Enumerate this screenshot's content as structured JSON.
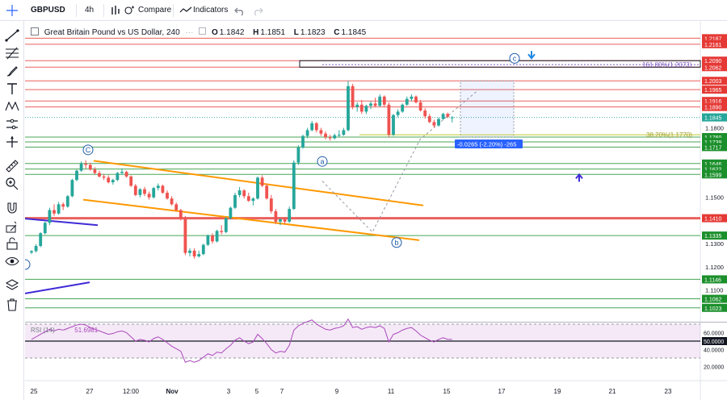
{
  "toolbar": {
    "symbol": "GBPUSD",
    "interval": "4h",
    "compare_label": "Compare",
    "indicators_label": "Indicators"
  },
  "legend": {
    "title": "Great Britain Pound vs US Dollar, 240",
    "open_label": "O",
    "open": "1.1842",
    "high_label": "H",
    "high": "1.1851",
    "low_label": "L",
    "low": "1.1823",
    "close_label": "C",
    "close": "1.1845"
  },
  "rsi": {
    "label": "RSI (14)",
    "value": "51.6981",
    "axis_labels": [
      "60.0000",
      "50.0000",
      "40.0000",
      "20.0000"
    ]
  },
  "price_axis": {
    "levels": [
      {
        "text": "1.2187",
        "color": "#e53935",
        "price": 1.2187
      },
      {
        "text": "1.2161",
        "color": "#e53935",
        "price": 1.2161
      },
      {
        "text": "1.2090",
        "color": "#e53935",
        "price": 1.209
      },
      {
        "text": "1.2062",
        "color": "#e53935",
        "price": 1.2062
      },
      {
        "text": "1.2003",
        "color": "#e53935",
        "price": 1.2003
      },
      {
        "text": "1.1965",
        "color": "#e53935",
        "price": 1.1965
      },
      {
        "text": "1.1916",
        "color": "#e53935",
        "price": 1.1916
      },
      {
        "text": "1.1890",
        "color": "#e53935",
        "price": 1.189
      },
      {
        "text": "1.1845",
        "color": "#26a69a",
        "price": 1.1845
      },
      {
        "text": "1.1760",
        "color": "#1b8f2b",
        "price": 1.176
      },
      {
        "text": "1.1739",
        "color": "#1b8f2b",
        "price": 1.1739
      },
      {
        "text": "1.1717",
        "color": "#1b8f2b",
        "price": 1.1717
      },
      {
        "text": "1.1646",
        "color": "#1b8f2b",
        "price": 1.1646
      },
      {
        "text": "1.1622",
        "color": "#1b8f2b",
        "price": 1.1622
      },
      {
        "text": "1.1599",
        "color": "#1b8f2b",
        "price": 1.1599
      },
      {
        "text": "1.1410",
        "color": "#e53935",
        "price": 1.141
      },
      {
        "text": "1.1335",
        "color": "#1b8f2b",
        "price": 1.1335
      },
      {
        "text": "1.1146",
        "color": "#1b8f2b",
        "price": 1.1146
      },
      {
        "text": "1.1062",
        "color": "#1b8f2b",
        "price": 1.1062
      },
      {
        "text": "1.1023",
        "color": "#1b8f2b",
        "price": 1.1023
      }
    ],
    "scale_labels": [
      {
        "text": "1.1800",
        "price": 1.18
      },
      {
        "text": "1.1500",
        "price": 1.15
      },
      {
        "text": "1.1300",
        "price": 1.13
      },
      {
        "text": "1.1200",
        "price": 1.12
      },
      {
        "text": "1.1100",
        "price": 1.11
      }
    ]
  },
  "time_axis": [
    "25",
    "27",
    "12:00",
    "Nov",
    "3",
    "5",
    "7",
    "9",
    "11",
    "15",
    "17",
    "19",
    "21",
    "23",
    "25"
  ],
  "annotations": {
    "fib_high": "161.80%(1.2073)",
    "fib_low": "38.20%(1.1770)",
    "measure": "-0.0265 (-2.20%) -265",
    "wave_a": "a",
    "wave_b": "b",
    "wave_c": "c",
    "wave_C": "C"
  },
  "colors": {
    "up": "#26a69a",
    "down": "#ef5350",
    "resistance": "#e53935",
    "support": "#1b8f2b",
    "channel": "#ff9800",
    "trend": "#3f2bd6",
    "rsi": "#ab47bc",
    "arrow": "#1e88e5"
  },
  "chart_data": {
    "type": "candlestick",
    "symbol": "GBPUSD",
    "interval": "240",
    "candles": [
      [
        1.1262,
        1.1272,
        1.1255,
        1.1268
      ],
      [
        1.1268,
        1.1298,
        1.1262,
        1.129
      ],
      [
        1.129,
        1.135,
        1.1285,
        1.1345
      ],
      [
        1.1345,
        1.1395,
        1.134,
        1.139
      ],
      [
        1.139,
        1.1455,
        1.138,
        1.1445
      ],
      [
        1.1445,
        1.147,
        1.142,
        1.143
      ],
      [
        1.143,
        1.148,
        1.1425,
        1.147
      ],
      [
        1.147,
        1.1478,
        1.1445,
        1.146
      ],
      [
        1.146,
        1.151,
        1.1455,
        1.1505
      ],
      [
        1.1505,
        1.158,
        1.15,
        1.1575
      ],
      [
        1.1575,
        1.162,
        1.157,
        1.1615
      ],
      [
        1.1615,
        1.1655,
        1.161,
        1.1645
      ],
      [
        1.1645,
        1.166,
        1.1625,
        1.164
      ],
      [
        1.164,
        1.165,
        1.1615,
        1.162
      ],
      [
        1.162,
        1.163,
        1.16,
        1.1605
      ],
      [
        1.1605,
        1.1615,
        1.1585,
        1.159
      ],
      [
        1.159,
        1.16,
        1.1575,
        1.1585
      ],
      [
        1.1585,
        1.1595,
        1.156,
        1.1565
      ],
      [
        1.1565,
        1.158,
        1.1555,
        1.1575
      ],
      [
        1.1575,
        1.161,
        1.157,
        1.1605
      ],
      [
        1.1605,
        1.1625,
        1.1598,
        1.161
      ],
      [
        1.161,
        1.1615,
        1.1585,
        1.159
      ],
      [
        1.159,
        1.1595,
        1.1545,
        1.155
      ],
      [
        1.155,
        1.1558,
        1.1505,
        1.151
      ],
      [
        1.151,
        1.154,
        1.15,
        1.1535
      ],
      [
        1.1535,
        1.1545,
        1.1505,
        1.1515
      ],
      [
        1.1515,
        1.1525,
        1.149,
        1.15
      ],
      [
        1.15,
        1.1545,
        1.1495,
        1.154
      ],
      [
        1.154,
        1.156,
        1.153,
        1.155
      ],
      [
        1.155,
        1.1555,
        1.1515,
        1.152
      ],
      [
        1.152,
        1.153,
        1.149,
        1.1495
      ],
      [
        1.1495,
        1.1505,
        1.1465,
        1.147
      ],
      [
        1.147,
        1.1478,
        1.144,
        1.1445
      ],
      [
        1.1445,
        1.145,
        1.14,
        1.141
      ],
      [
        1.141,
        1.142,
        1.125,
        1.126
      ],
      [
        1.126,
        1.128,
        1.1245,
        1.127
      ],
      [
        1.127,
        1.128,
        1.1235,
        1.1245
      ],
      [
        1.1245,
        1.127,
        1.124,
        1.1255
      ],
      [
        1.1255,
        1.13,
        1.125,
        1.1295
      ],
      [
        1.1295,
        1.134,
        1.129,
        1.1335
      ],
      [
        1.1335,
        1.1345,
        1.13,
        1.131
      ],
      [
        1.131,
        1.136,
        1.1305,
        1.1355
      ],
      [
        1.1355,
        1.138,
        1.134,
        1.135
      ],
      [
        1.135,
        1.1415,
        1.1345,
        1.141
      ],
      [
        1.141,
        1.146,
        1.1405,
        1.1455
      ],
      [
        1.1455,
        1.152,
        1.145,
        1.151
      ],
      [
        1.151,
        1.1545,
        1.15,
        1.153
      ],
      [
        1.153,
        1.1535,
        1.1495,
        1.1505
      ],
      [
        1.1505,
        1.152,
        1.148,
        1.1485
      ],
      [
        1.1485,
        1.15,
        1.1465,
        1.1495
      ],
      [
        1.1495,
        1.159,
        1.149,
        1.1585
      ],
      [
        1.1585,
        1.1595,
        1.1545,
        1.155
      ],
      [
        1.155,
        1.156,
        1.149,
        1.1495
      ],
      [
        1.1495,
        1.151,
        1.143,
        1.144
      ],
      [
        1.144,
        1.145,
        1.1385,
        1.1395
      ],
      [
        1.1395,
        1.141,
        1.138,
        1.1405
      ],
      [
        1.1405,
        1.1415,
        1.1385,
        1.1395
      ],
      [
        1.1395,
        1.146,
        1.139,
        1.145
      ],
      [
        1.145,
        1.166,
        1.1445,
        1.165
      ],
      [
        1.165,
        1.1725,
        1.164,
        1.1715
      ],
      [
        1.1715,
        1.177,
        1.171,
        1.1765
      ],
      [
        1.1765,
        1.18,
        1.1755,
        1.179
      ],
      [
        1.179,
        1.183,
        1.1785,
        1.182
      ],
      [
        1.182,
        1.1825,
        1.178,
        1.179
      ],
      [
        1.179,
        1.18,
        1.1765,
        1.1775
      ],
      [
        1.1775,
        1.1785,
        1.175,
        1.176
      ],
      [
        1.176,
        1.177,
        1.1745,
        1.1755
      ],
      [
        1.1755,
        1.1775,
        1.175,
        1.1768
      ],
      [
        1.1768,
        1.179,
        1.176,
        1.177
      ],
      [
        1.177,
        1.18,
        1.1765,
        1.179
      ],
      [
        1.179,
        1.2003,
        1.1785,
        1.198
      ],
      [
        1.198,
        1.199,
        1.188,
        1.189
      ],
      [
        1.189,
        1.191,
        1.187,
        1.19
      ],
      [
        1.19,
        1.192,
        1.186,
        1.187
      ],
      [
        1.187,
        1.19,
        1.186,
        1.1895
      ],
      [
        1.1895,
        1.1915,
        1.188,
        1.1905
      ],
      [
        1.1905,
        1.193,
        1.189,
        1.1895
      ],
      [
        1.1895,
        1.1945,
        1.189,
        1.1935
      ],
      [
        1.1935,
        1.194,
        1.189,
        1.19
      ],
      [
        1.19,
        1.191,
        1.176,
        1.177
      ],
      [
        1.177,
        1.186,
        1.1765,
        1.1855
      ],
      [
        1.1855,
        1.188,
        1.1845,
        1.187
      ],
      [
        1.187,
        1.1905,
        1.1865,
        1.19
      ],
      [
        1.19,
        1.1935,
        1.1895,
        1.1925
      ],
      [
        1.1925,
        1.1945,
        1.1915,
        1.1935
      ],
      [
        1.1935,
        1.194,
        1.1905,
        1.191
      ],
      [
        1.191,
        1.192,
        1.187,
        1.1875
      ],
      [
        1.1875,
        1.1885,
        1.184,
        1.185
      ],
      [
        1.185,
        1.186,
        1.182,
        1.1825
      ],
      [
        1.1825,
        1.1835,
        1.18,
        1.181
      ],
      [
        1.181,
        1.1845,
        1.1805,
        1.1838
      ],
      [
        1.1838,
        1.1865,
        1.1835,
        1.186
      ],
      [
        1.186,
        1.1866,
        1.1842,
        1.1848
      ],
      [
        1.1842,
        1.1851,
        1.1823,
        1.1845
      ]
    ],
    "rsi": [
      52,
      55,
      58,
      61,
      64,
      62,
      64,
      63,
      65,
      67,
      69,
      70,
      69,
      66,
      64,
      62,
      60,
      58,
      59,
      61,
      62,
      60,
      55,
      50,
      52,
      51,
      49,
      53,
      55,
      52,
      48,
      44,
      41,
      38,
      25,
      27,
      25,
      27,
      31,
      35,
      33,
      37,
      36,
      41,
      45,
      51,
      54,
      50,
      47,
      49,
      58,
      53,
      47,
      40,
      36,
      38,
      37,
      45,
      63,
      68,
      71,
      73,
      75,
      70,
      67,
      64,
      63,
      65,
      66,
      68,
      76,
      66,
      67,
      64,
      66,
      67,
      66,
      68,
      65,
      49,
      58,
      60,
      63,
      65,
      66,
      62,
      57,
      54,
      51,
      49,
      52,
      54,
      52,
      52
    ],
    "ylim": [
      1.1,
      1.22
    ]
  }
}
